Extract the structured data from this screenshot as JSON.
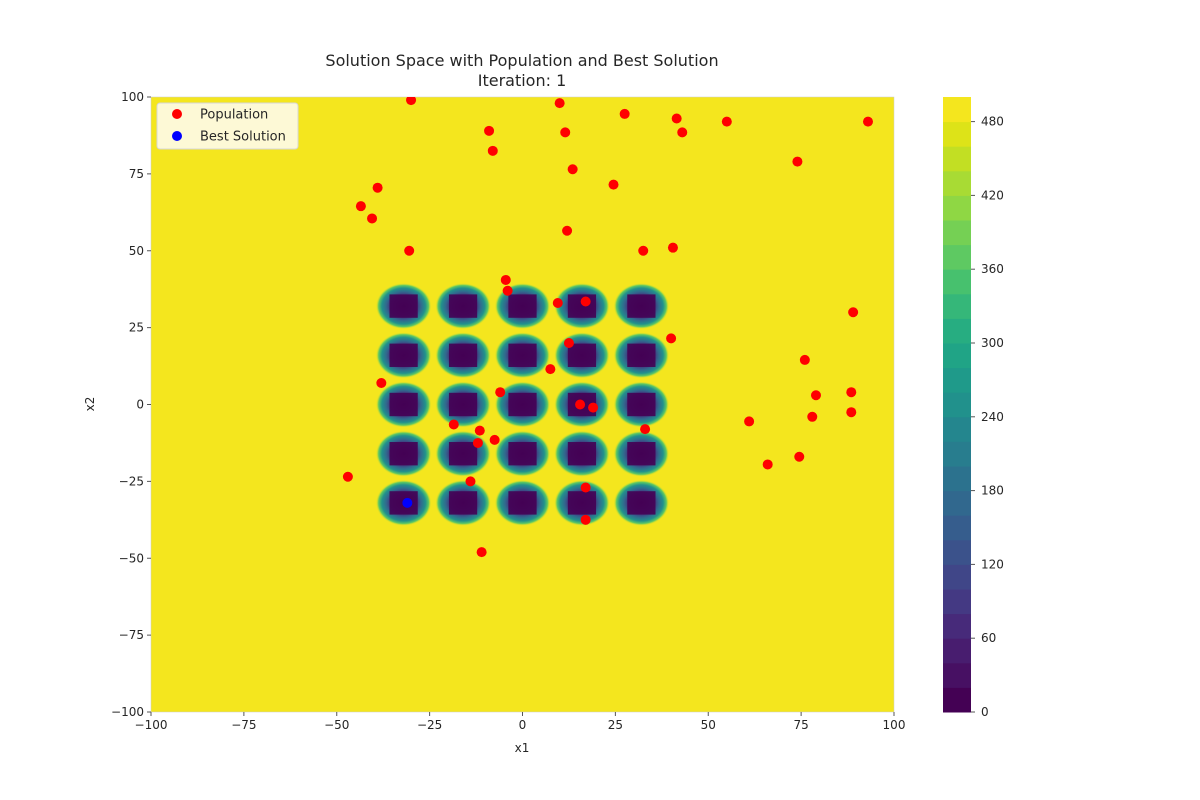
{
  "chart_data": {
    "type": "scatter",
    "title": "Solution Space with Population and Best Solution",
    "subtitle": "Iteration: 1",
    "xlabel": "x1",
    "ylabel": "x2",
    "xlim": [
      -100,
      100
    ],
    "ylim": [
      -100,
      100
    ],
    "xticks": [
      -100,
      -75,
      -50,
      -25,
      0,
      25,
      50,
      75,
      100
    ],
    "yticks": [
      -100,
      -75,
      -50,
      -25,
      0,
      25,
      50,
      75,
      100
    ],
    "xtick_labels": [
      "−100",
      "−75",
      "−50",
      "−25",
      "0",
      "25",
      "50",
      "75",
      "100"
    ],
    "ytick_labels": [
      "−100",
      "−75",
      "−50",
      "−25",
      "0",
      "25",
      "50",
      "75",
      "100"
    ],
    "grid": false,
    "legend_position": "top-left",
    "background": {
      "type": "filled-contour",
      "colormap": "viridis",
      "max_color": "#f4e61e",
      "min_color": "#440154",
      "wells": {
        "centers_x": [
          -32,
          -16,
          0,
          16,
          32
        ],
        "centers_y": [
          -32,
          -16,
          0,
          16,
          32
        ]
      }
    },
    "colorbar": {
      "range": [
        0,
        500
      ],
      "ticks": [
        0,
        60,
        120,
        180,
        240,
        300,
        360,
        420,
        480
      ],
      "tick_labels": [
        "0",
        "60",
        "120",
        "180",
        "240",
        "300",
        "360",
        "420",
        "480"
      ],
      "levels": 25
    },
    "series": [
      {
        "name": "Population",
        "color": "#ff0000",
        "points": [
          [
            -30,
            99
          ],
          [
            10,
            98
          ],
          [
            27.5,
            94.5
          ],
          [
            41.5,
            93
          ],
          [
            43,
            88.5
          ],
          [
            55,
            92
          ],
          [
            93,
            92
          ],
          [
            -9,
            89
          ],
          [
            11.5,
            88.5
          ],
          [
            -8,
            82.5
          ],
          [
            74,
            79
          ],
          [
            13.5,
            76.5
          ],
          [
            24.5,
            71.5
          ],
          [
            -39,
            70.5
          ],
          [
            -43.5,
            64.5
          ],
          [
            -40.5,
            60.5
          ],
          [
            12,
            56.5
          ],
          [
            -30.5,
            50
          ],
          [
            32.5,
            50
          ],
          [
            40.5,
            51
          ],
          [
            -4.5,
            40.5
          ],
          [
            -4,
            37
          ],
          [
            9.5,
            33
          ],
          [
            17,
            33.5
          ],
          [
            89,
            30
          ],
          [
            40,
            21.5
          ],
          [
            12.5,
            20
          ],
          [
            76,
            14.5
          ],
          [
            7.5,
            11.5
          ],
          [
            -38,
            7
          ],
          [
            -6,
            4
          ],
          [
            79,
            3
          ],
          [
            88.5,
            4
          ],
          [
            15.5,
            0
          ],
          [
            19,
            -1
          ],
          [
            88.5,
            -2.5
          ],
          [
            78,
            -4
          ],
          [
            61,
            -5.5
          ],
          [
            -18.5,
            -6.5
          ],
          [
            -11.5,
            -8.5
          ],
          [
            33,
            -8
          ],
          [
            -7.5,
            -11.5
          ],
          [
            -12,
            -12.5
          ],
          [
            74.5,
            -17
          ],
          [
            66,
            -19.5
          ],
          [
            -47,
            -23.5
          ],
          [
            -14,
            -25
          ],
          [
            17,
            -27
          ],
          [
            17,
            -37.5
          ],
          [
            -11,
            -48
          ]
        ]
      },
      {
        "name": "Best Solution",
        "color": "#0000ff",
        "points": [
          [
            -31,
            -32
          ]
        ]
      }
    ]
  }
}
